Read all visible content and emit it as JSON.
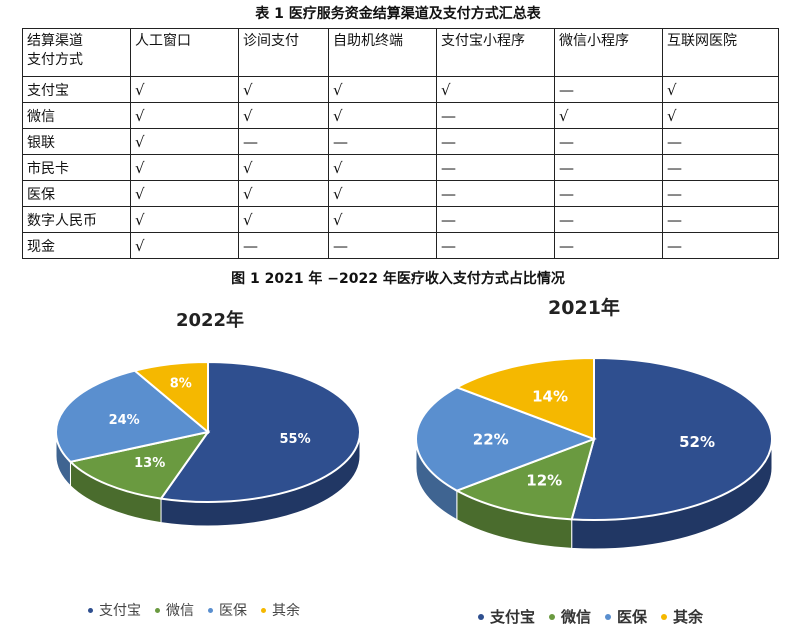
{
  "table": {
    "title": "表 1 医疗服务资金结算渠道及支付方式汇总表",
    "corner_line1": "结算渠道",
    "corner_line2": "支付方式",
    "columns": [
      "人工窗口",
      "诊间支付",
      "自助机终端",
      "支付宝小程序",
      "微信小程序",
      "互联网医院"
    ],
    "rows": [
      {
        "name": "支付宝",
        "cells": [
          "√",
          "√",
          "√",
          "√",
          "—",
          "√"
        ]
      },
      {
        "name": "微信",
        "cells": [
          "√",
          "√",
          "√",
          "—",
          "√",
          "√"
        ]
      },
      {
        "name": "银联",
        "cells": [
          "√",
          "—",
          "—",
          "—",
          "—",
          "—"
        ]
      },
      {
        "name": "市民卡",
        "cells": [
          "√",
          "√",
          "√",
          "—",
          "—",
          "—"
        ]
      },
      {
        "name": "医保",
        "cells": [
          "√",
          "√",
          "√",
          "—",
          "—",
          "—"
        ]
      },
      {
        "name": "数字人民币",
        "cells": [
          "√",
          "√",
          "√",
          "—",
          "—",
          "—"
        ]
      },
      {
        "name": "现金",
        "cells": [
          "√",
          "—",
          "—",
          "—",
          "—",
          "—"
        ]
      }
    ]
  },
  "figure": {
    "title": "图 1 2021 年 −2022 年医疗收入支付方式占比情况"
  },
  "chart_data": [
    {
      "type": "pie",
      "title": "2022年",
      "categories": [
        "支付宝",
        "微信",
        "医保",
        "其余"
      ],
      "values": [
        55,
        13,
        24,
        8
      ],
      "labels": [
        "55%",
        "13%",
        "24%",
        "8%"
      ],
      "colors": [
        "#2f4f8f",
        "#6a9a40",
        "#5a8fcf",
        "#f5b800"
      ],
      "legend": [
        "支付宝",
        "微信",
        "医保",
        "其余"
      ],
      "legend_position": "bottom"
    },
    {
      "type": "pie",
      "title": "2021年",
      "categories": [
        "支付宝",
        "微信",
        "医保",
        "其余"
      ],
      "values": [
        52,
        12,
        22,
        14
      ],
      "labels": [
        "52%",
        "12%",
        "22%",
        "14%"
      ],
      "colors": [
        "#2f4f8f",
        "#6a9a40",
        "#5a8fcf",
        "#f5b800"
      ],
      "legend": [
        "支付宝",
        "微信",
        "医保",
        "其余"
      ],
      "legend_position": "bottom"
    }
  ]
}
